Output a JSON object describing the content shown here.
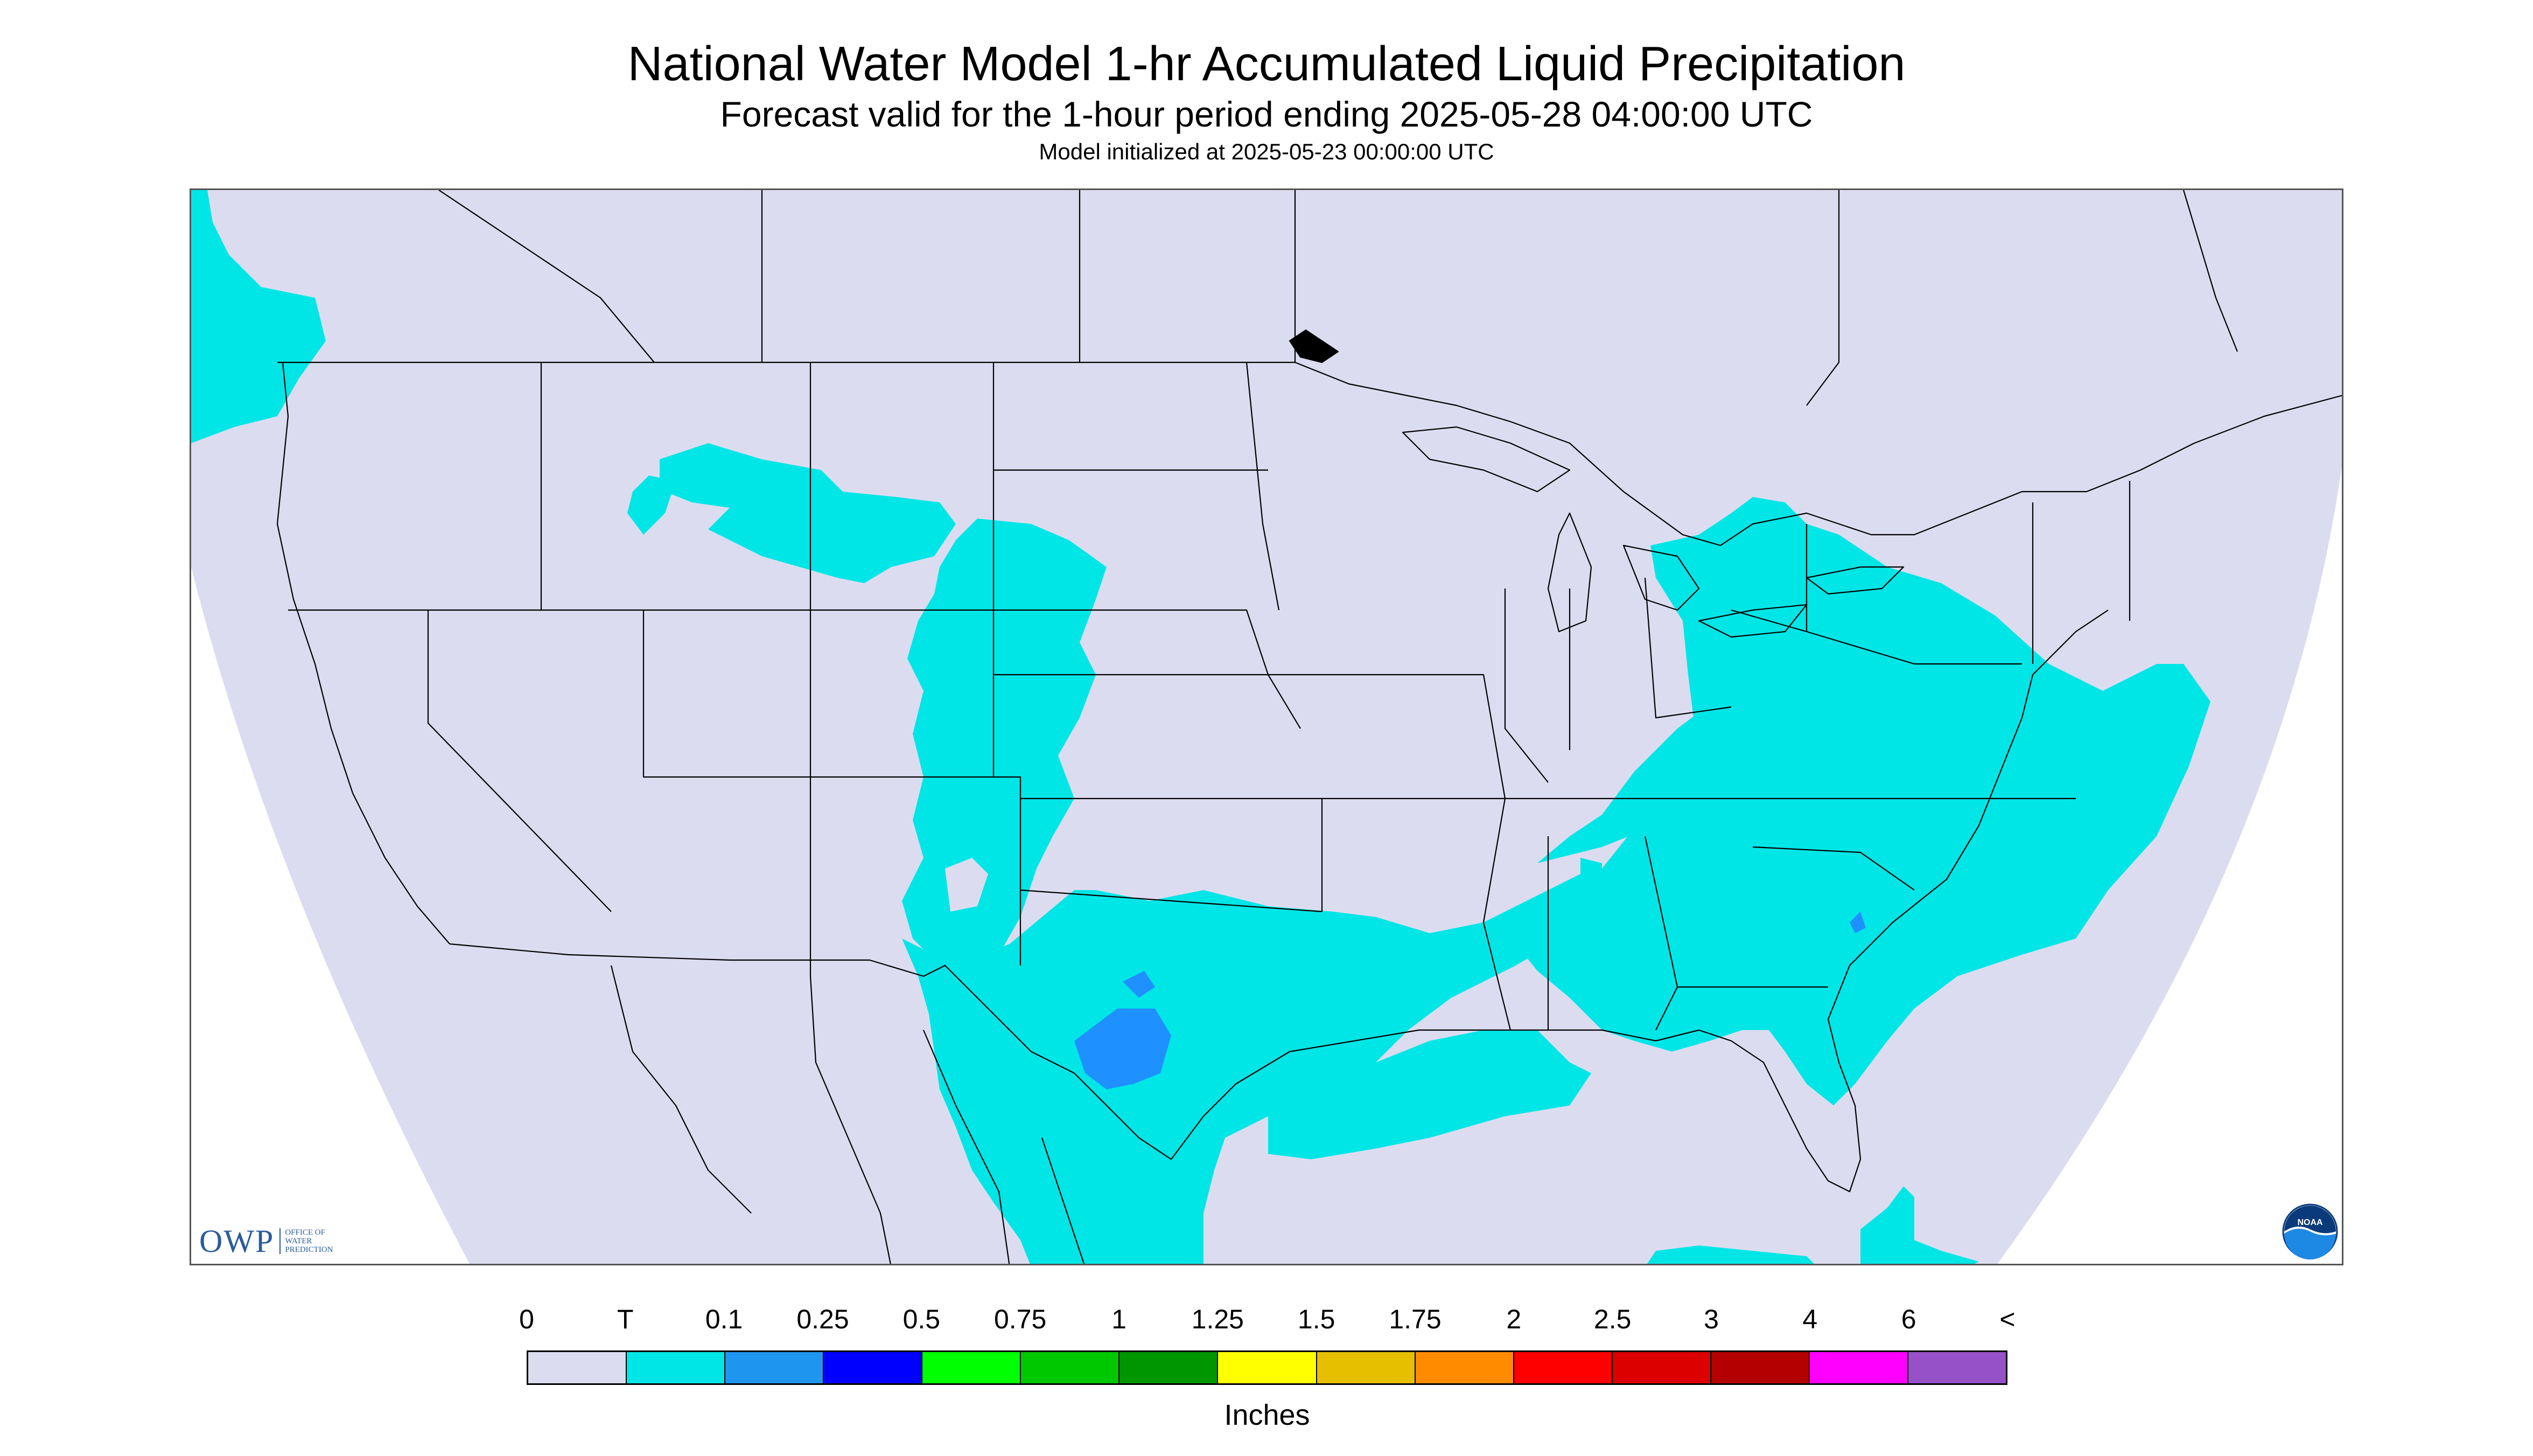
{
  "header": {
    "title": "National Water Model 1-hr Accumulated Liquid Precipitation",
    "subtitle": "Forecast valid for the 1-hour period ending 2025-05-28 04:00:00 UTC",
    "init": "Model initialized at 2025-05-23 00:00:00 UTC"
  },
  "map": {
    "background_color": "#dcdcf0",
    "outside_color": "#ffffff",
    "border_color": "#000000",
    "precip_trace_color": "#00e6e6",
    "precip_light_color": "#1e90ff"
  },
  "logos": {
    "owp_text": "OWP",
    "owp_sub": [
      "OFFICE OF",
      "WATER",
      "PREDICTION"
    ],
    "noaa_text": "NOAA"
  },
  "legend": {
    "labels": [
      "0",
      "T",
      "0.1",
      "0.25",
      "0.5",
      "0.75",
      "1",
      "1.25",
      "1.5",
      "1.75",
      "2",
      "2.5",
      "3",
      "4",
      "6",
      "<"
    ],
    "colors": [
      "#dcdcf0",
      "#00e6e6",
      "#1e96f0",
      "#0000ff",
      "#00ff00",
      "#00c800",
      "#009600",
      "#ffff00",
      "#e6c000",
      "#ff8c00",
      "#ff0000",
      "#dc0000",
      "#b40000",
      "#ff00ff",
      "#9650c8"
    ],
    "units": "Inches"
  }
}
